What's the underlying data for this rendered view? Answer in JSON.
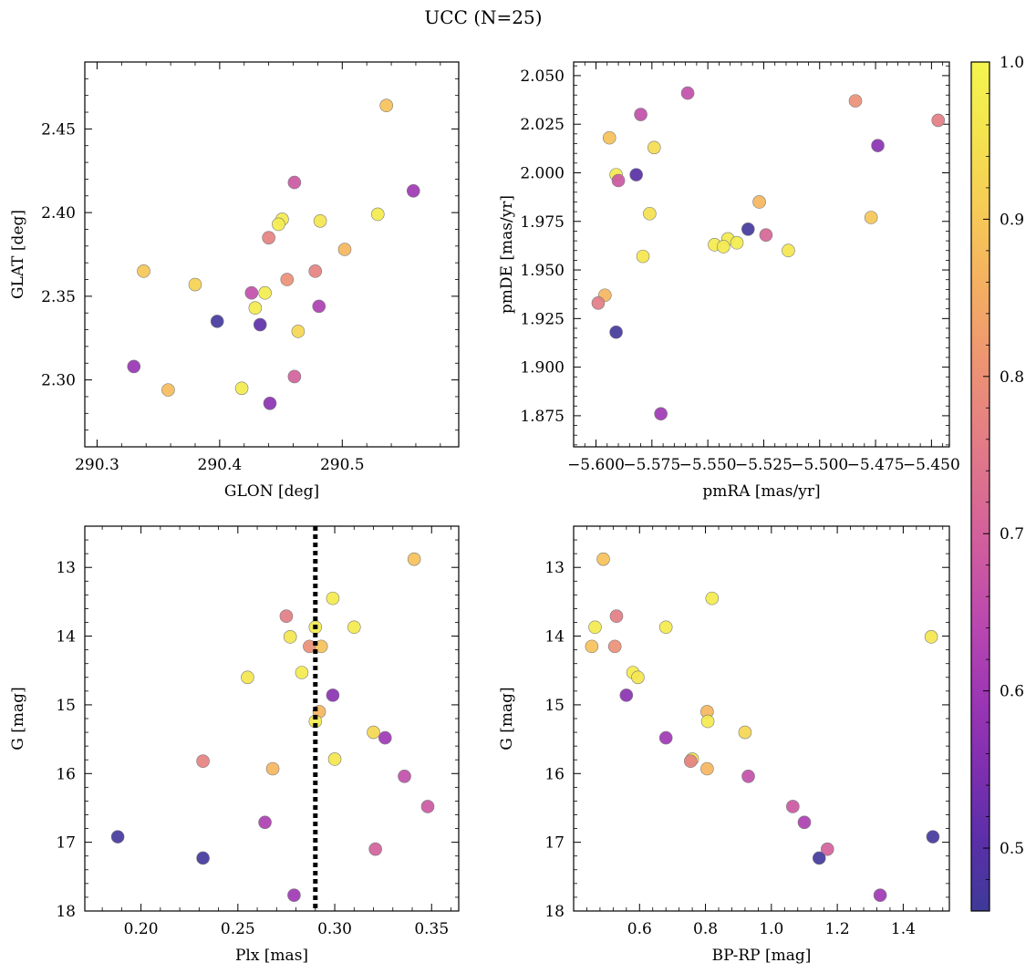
{
  "figure": {
    "title": "UCC (N=25)"
  },
  "colorbar": {
    "range": [
      0.46,
      1.0
    ],
    "ticks": [
      0.5,
      0.6,
      0.7,
      0.8,
      0.9,
      1.0
    ],
    "tick_labels": [
      "0.5",
      "0.6",
      "0.7",
      "0.8",
      "0.9",
      "1.0"
    ],
    "colormap": "plasma (truncated)",
    "colormap_stops": [
      "#3e3a98",
      "#5b2fa8",
      "#7e2fb0",
      "#9c36b4",
      "#b847b0",
      "#cd5aa0",
      "#dc6f90",
      "#e6847f",
      "#ef9a6e",
      "#f5b35f",
      "#f6cd55",
      "#f4e44e",
      "#f3f54e"
    ]
  },
  "marker_style": {
    "radius": 7,
    "opacity": 0.92,
    "edge_color": "#7a7a7a"
  },
  "chart_data": [
    {
      "type": "scatter",
      "title": "",
      "xlabel": "GLON [deg]",
      "ylabel": "GLAT [deg]",
      "xlim": [
        290.29,
        290.595
      ],
      "ylim": [
        2.26,
        2.49
      ],
      "xticks": [
        290.3,
        290.4,
        290.5
      ],
      "xtick_labels": [
        "290.3",
        "290.4",
        "290.5"
      ],
      "yticks": [
        2.3,
        2.35,
        2.4,
        2.45
      ],
      "ytick_labels": [
        "2.30",
        "2.35",
        "2.40",
        "2.45"
      ],
      "invert_y": false,
      "points": [
        {
          "x": 290.536,
          "y": 2.464,
          "c": 0.89
        },
        {
          "x": 290.558,
          "y": 2.413,
          "c": 0.6
        },
        {
          "x": 290.461,
          "y": 2.418,
          "c": 0.68
        },
        {
          "x": 290.529,
          "y": 2.399,
          "c": 0.97
        },
        {
          "x": 290.451,
          "y": 2.396,
          "c": 0.97
        },
        {
          "x": 290.448,
          "y": 2.393,
          "c": 0.98
        },
        {
          "x": 290.482,
          "y": 2.395,
          "c": 0.96
        },
        {
          "x": 290.502,
          "y": 2.378,
          "c": 0.87
        },
        {
          "x": 290.44,
          "y": 2.385,
          "c": 0.77
        },
        {
          "x": 290.478,
          "y": 2.365,
          "c": 0.77
        },
        {
          "x": 290.338,
          "y": 2.365,
          "c": 0.9
        },
        {
          "x": 290.38,
          "y": 2.357,
          "c": 0.92
        },
        {
          "x": 290.455,
          "y": 2.36,
          "c": 0.8
        },
        {
          "x": 290.426,
          "y": 2.352,
          "c": 0.66
        },
        {
          "x": 290.437,
          "y": 2.352,
          "c": 0.98
        },
        {
          "x": 290.429,
          "y": 2.343,
          "c": 0.97
        },
        {
          "x": 290.481,
          "y": 2.344,
          "c": 0.62
        },
        {
          "x": 290.398,
          "y": 2.335,
          "c": 0.47
        },
        {
          "x": 290.433,
          "y": 2.333,
          "c": 0.51
        },
        {
          "x": 290.464,
          "y": 2.329,
          "c": 0.93
        },
        {
          "x": 290.33,
          "y": 2.308,
          "c": 0.59
        },
        {
          "x": 290.358,
          "y": 2.294,
          "c": 0.88
        },
        {
          "x": 290.418,
          "y": 2.295,
          "c": 0.97
        },
        {
          "x": 290.461,
          "y": 2.302,
          "c": 0.7
        },
        {
          "x": 290.441,
          "y": 2.286,
          "c": 0.57
        }
      ]
    },
    {
      "type": "scatter",
      "title": "",
      "xlabel": "pmRA [mas/yr]",
      "ylabel": "pmDE [mas/yr]",
      "xlim": [
        -5.61,
        -5.442
      ],
      "ylim": [
        1.859,
        2.057
      ],
      "xticks": [
        -5.6,
        -5.575,
        -5.55,
        -5.525,
        -5.5,
        -5.475,
        -5.45
      ],
      "xtick_labels": [
        "−5.600",
        "−5.575",
        "−5.550",
        "−5.525",
        "−5.500",
        "−5.475",
        "−5.450"
      ],
      "yticks": [
        1.875,
        1.9,
        1.925,
        1.95,
        1.975,
        2.0,
        2.025,
        2.05
      ],
      "ytick_labels": [
        "1.875",
        "1.900",
        "1.925",
        "1.950",
        "1.975",
        "2.000",
        "2.025",
        "2.050"
      ],
      "invert_y": false,
      "points": [
        {
          "x": -5.559,
          "y": 2.041,
          "c": 0.66
        },
        {
          "x": -5.484,
          "y": 2.037,
          "c": 0.8
        },
        {
          "x": -5.447,
          "y": 2.027,
          "c": 0.76
        },
        {
          "x": -5.58,
          "y": 2.03,
          "c": 0.66
        },
        {
          "x": -5.594,
          "y": 2.018,
          "c": 0.89
        },
        {
          "x": -5.474,
          "y": 2.014,
          "c": 0.57
        },
        {
          "x": -5.574,
          "y": 2.013,
          "c": 0.94
        },
        {
          "x": -5.591,
          "y": 1.999,
          "c": 0.97
        },
        {
          "x": -5.582,
          "y": 1.999,
          "c": 0.5
        },
        {
          "x": -5.59,
          "y": 1.996,
          "c": 0.68
        },
        {
          "x": -5.527,
          "y": 1.985,
          "c": 0.87
        },
        {
          "x": -5.576,
          "y": 1.979,
          "c": 0.95
        },
        {
          "x": -5.477,
          "y": 1.977,
          "c": 0.9
        },
        {
          "x": -5.532,
          "y": 1.971,
          "c": 0.47
        },
        {
          "x": -5.524,
          "y": 1.968,
          "c": 0.71
        },
        {
          "x": -5.541,
          "y": 1.966,
          "c": 0.97
        },
        {
          "x": -5.547,
          "y": 1.963,
          "c": 0.97
        },
        {
          "x": -5.543,
          "y": 1.962,
          "c": 0.97
        },
        {
          "x": -5.537,
          "y": 1.964,
          "c": 0.98
        },
        {
          "x": -5.579,
          "y": 1.957,
          "c": 0.96
        },
        {
          "x": -5.514,
          "y": 1.96,
          "c": 0.96
        },
        {
          "x": -5.596,
          "y": 1.937,
          "c": 0.87
        },
        {
          "x": -5.599,
          "y": 1.933,
          "c": 0.76
        },
        {
          "x": -5.591,
          "y": 1.918,
          "c": 0.47
        },
        {
          "x": -5.571,
          "y": 1.876,
          "c": 0.6
        }
      ]
    },
    {
      "type": "scatter",
      "title": "",
      "xlabel": "Plx [mas]",
      "ylabel": "G [mag]",
      "xlim": [
        0.171,
        0.364
      ],
      "ylim": [
        18.0,
        12.4
      ],
      "xticks": [
        0.2,
        0.25,
        0.3,
        0.35
      ],
      "xtick_labels": [
        "0.20",
        "0.25",
        "0.30",
        "0.35"
      ],
      "yticks": [
        13,
        14,
        15,
        16,
        17,
        18
      ],
      "ytick_labels": [
        "13",
        "14",
        "15",
        "16",
        "17",
        "18"
      ],
      "invert_y": true,
      "vline": 0.29,
      "points": [
        {
          "x": 0.341,
          "y": 12.88,
          "c": 0.89
        },
        {
          "x": 0.299,
          "y": 13.45,
          "c": 0.97
        },
        {
          "x": 0.275,
          "y": 13.71,
          "c": 0.76
        },
        {
          "x": 0.29,
          "y": 13.87,
          "c": 0.97
        },
        {
          "x": 0.31,
          "y": 13.87,
          "c": 0.97
        },
        {
          "x": 0.277,
          "y": 14.01,
          "c": 0.96
        },
        {
          "x": 0.287,
          "y": 14.15,
          "c": 0.8
        },
        {
          "x": 0.293,
          "y": 14.15,
          "c": 0.89
        },
        {
          "x": 0.283,
          "y": 14.53,
          "c": 0.97
        },
        {
          "x": 0.255,
          "y": 14.6,
          "c": 0.96
        },
        {
          "x": 0.299,
          "y": 14.86,
          "c": 0.57
        },
        {
          "x": 0.292,
          "y": 15.1,
          "c": 0.87
        },
        {
          "x": 0.29,
          "y": 15.24,
          "c": 0.97
        },
        {
          "x": 0.32,
          "y": 15.4,
          "c": 0.93
        },
        {
          "x": 0.326,
          "y": 15.48,
          "c": 0.6
        },
        {
          "x": 0.3,
          "y": 15.79,
          "c": 0.96
        },
        {
          "x": 0.232,
          "y": 15.82,
          "c": 0.77
        },
        {
          "x": 0.268,
          "y": 15.93,
          "c": 0.87
        },
        {
          "x": 0.336,
          "y": 16.04,
          "c": 0.66
        },
        {
          "x": 0.348,
          "y": 16.48,
          "c": 0.68
        },
        {
          "x": 0.264,
          "y": 16.71,
          "c": 0.62
        },
        {
          "x": 0.188,
          "y": 16.92,
          "c": 0.47
        },
        {
          "x": 0.321,
          "y": 17.1,
          "c": 0.7
        },
        {
          "x": 0.232,
          "y": 17.23,
          "c": 0.47
        },
        {
          "x": 0.279,
          "y": 17.77,
          "c": 0.6
        }
      ]
    },
    {
      "type": "scatter",
      "title": "",
      "xlabel": "BP-RP [mag]",
      "ylabel": "G [mag]",
      "xlim": [
        0.4,
        1.54
      ],
      "ylim": [
        18.0,
        12.4
      ],
      "xticks": [
        0.6,
        0.8,
        1.0,
        1.2,
        1.4
      ],
      "xtick_labels": [
        "0.6",
        "0.8",
        "1.0",
        "1.2",
        "1.4"
      ],
      "yticks": [
        13,
        14,
        15,
        16,
        17,
        18
      ],
      "ytick_labels": [
        "13",
        "14",
        "15",
        "16",
        "17",
        "18"
      ],
      "invert_y": true,
      "points": [
        {
          "x": 0.49,
          "y": 12.88,
          "c": 0.89
        },
        {
          "x": 0.82,
          "y": 13.45,
          "c": 0.97
        },
        {
          "x": 0.53,
          "y": 13.71,
          "c": 0.76
        },
        {
          "x": 0.465,
          "y": 13.87,
          "c": 0.97
        },
        {
          "x": 0.68,
          "y": 13.87,
          "c": 0.97
        },
        {
          "x": 1.485,
          "y": 14.01,
          "c": 0.96
        },
        {
          "x": 0.455,
          "y": 14.15,
          "c": 0.89
        },
        {
          "x": 0.525,
          "y": 14.15,
          "c": 0.8
        },
        {
          "x": 0.58,
          "y": 14.53,
          "c": 0.97
        },
        {
          "x": 0.595,
          "y": 14.6,
          "c": 0.96
        },
        {
          "x": 0.56,
          "y": 14.86,
          "c": 0.57
        },
        {
          "x": 0.805,
          "y": 15.1,
          "c": 0.87
        },
        {
          "x": 0.807,
          "y": 15.24,
          "c": 0.97
        },
        {
          "x": 0.92,
          "y": 15.4,
          "c": 0.93
        },
        {
          "x": 0.68,
          "y": 15.48,
          "c": 0.6
        },
        {
          "x": 0.76,
          "y": 15.79,
          "c": 0.96
        },
        {
          "x": 0.755,
          "y": 15.82,
          "c": 0.77
        },
        {
          "x": 0.805,
          "y": 15.93,
          "c": 0.87
        },
        {
          "x": 0.93,
          "y": 16.04,
          "c": 0.66
        },
        {
          "x": 1.065,
          "y": 16.48,
          "c": 0.68
        },
        {
          "x": 1.1,
          "y": 16.71,
          "c": 0.62
        },
        {
          "x": 1.49,
          "y": 16.92,
          "c": 0.47
        },
        {
          "x": 1.17,
          "y": 17.1,
          "c": 0.7
        },
        {
          "x": 1.145,
          "y": 17.23,
          "c": 0.47
        },
        {
          "x": 1.33,
          "y": 17.77,
          "c": 0.6
        }
      ]
    }
  ]
}
